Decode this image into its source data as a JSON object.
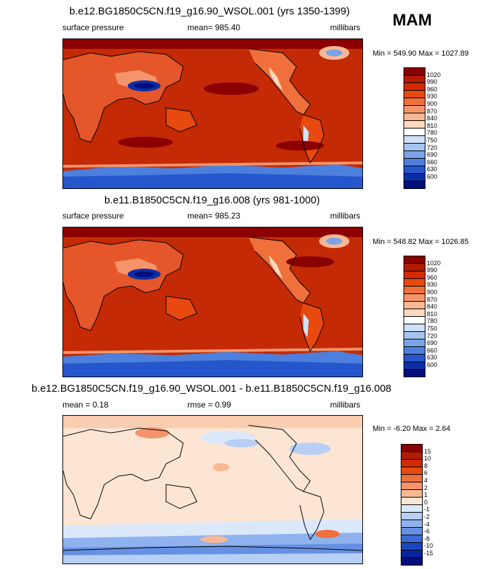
{
  "season": "MAM",
  "panels": [
    {
      "title": "b.e12.BG1850C5CN.f19_g16.90_WSOL.001 (yrs 1350-1399)",
      "left_label": "surface pressure",
      "mean_label": "mean= 985.40",
      "units": "millibars",
      "minmax": "Min = 549.90 Max = 1027.89"
    },
    {
      "title": "b.e11.B1850C5CN.f19_g16.008 (yrs 981-1000)",
      "left_label": "surface pressure",
      "mean_label": "mean= 985.23",
      "units": "millibars",
      "minmax": "Min = 548.82 Max = 1026.85"
    },
    {
      "title": "b.e12.BG1850C5CN.f19_g16.90_WSOL.001 - b.e11.B1850C5CN.f19_g16.008",
      "left_label": "mean =   0.18",
      "mid_label": "rmse =   0.99",
      "units": "millibars",
      "minmax": "Min =  -6.20 Max =   2.64"
    }
  ],
  "colorbar_abs": {
    "labels": [
      "1020",
      "990",
      "960",
      "930",
      "900",
      "870",
      "840",
      "810",
      "780",
      "750",
      "720",
      "690",
      "660",
      "630",
      "600"
    ],
    "colors": [
      "#8b0000",
      "#b31b00",
      "#d32a00",
      "#e8490f",
      "#f0703c",
      "#f5946a",
      "#f9b894",
      "#fcd9c0",
      "#ffffff",
      "#cfe0f7",
      "#a6c4f0",
      "#7aa3e8",
      "#4d7fdc",
      "#2656cc",
      "#0a2ea8",
      "#000f7a"
    ]
  },
  "colorbar_diff": {
    "labels": [
      "15",
      "10",
      "8",
      "6",
      "4",
      "2",
      "1",
      "0",
      "-1",
      "-2",
      "-4",
      "-6",
      "-8",
      "-10",
      "-15"
    ],
    "colors": [
      "#8b0000",
      "#b31b00",
      "#d32a00",
      "#e8490f",
      "#f0703c",
      "#f5946a",
      "#f9b894",
      "#fde5d4",
      "#dbe8fa",
      "#b7cff5",
      "#8fb2ee",
      "#6690e3",
      "#3c6bd6",
      "#1a46c0",
      "#0626a0",
      "#000f7a"
    ]
  }
}
